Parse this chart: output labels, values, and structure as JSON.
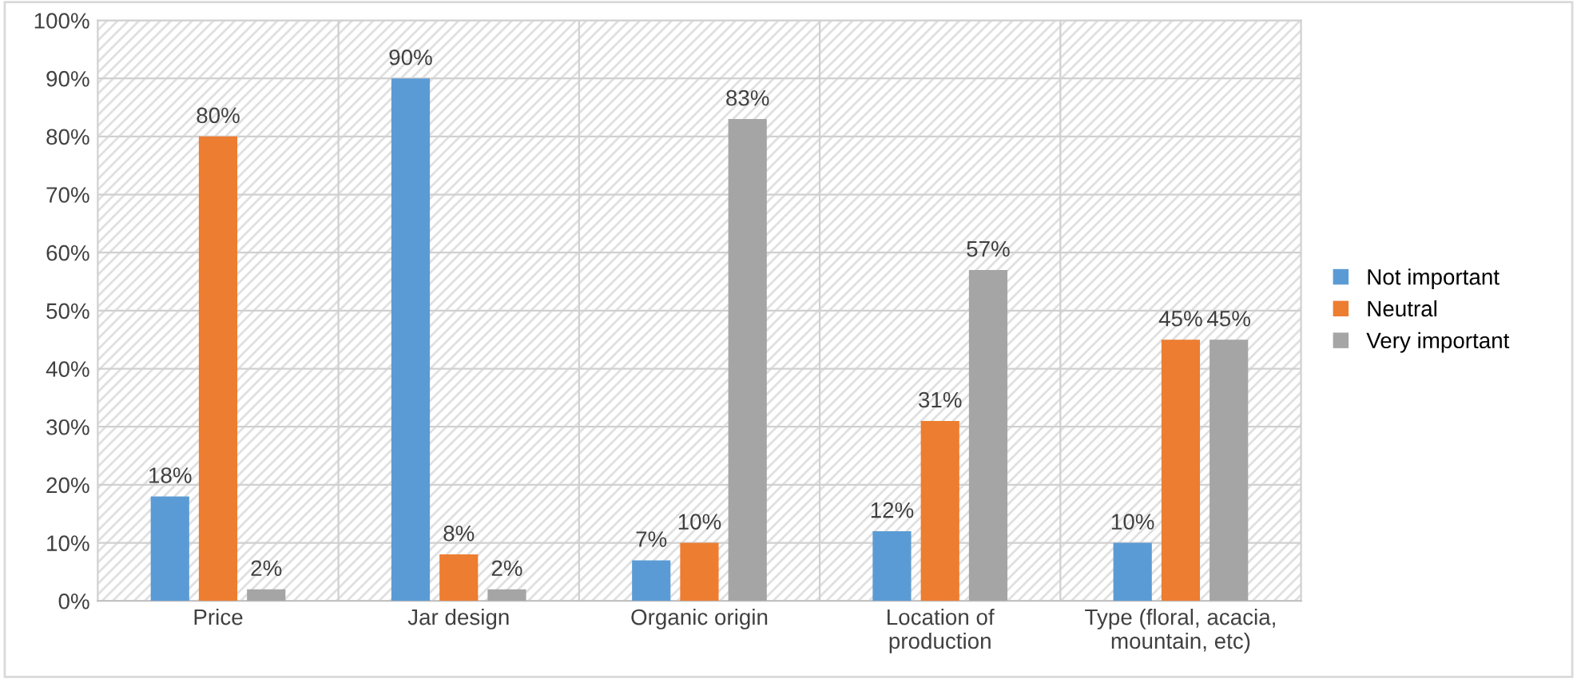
{
  "chart_data": {
    "type": "bar",
    "categories": [
      "Price",
      "Jar design",
      "Organic origin",
      "Location of production",
      "Type (floral, acacia, mountain, etc)"
    ],
    "series": [
      {
        "name": "Not important",
        "color": "#5b9bd5",
        "values": [
          18,
          90,
          7,
          12,
          10
        ],
        "value_labels": [
          "18%",
          "90%",
          "7%",
          "12%",
          "10%"
        ]
      },
      {
        "name": "Neutral",
        "color": "#ed7d31",
        "values": [
          80,
          8,
          10,
          31,
          45
        ],
        "value_labels": [
          "80%",
          "8%",
          "10%",
          "31%",
          "45%"
        ]
      },
      {
        "name": "Very important",
        "color": "#a5a5a5",
        "values": [
          2,
          2,
          83,
          57,
          45
        ],
        "value_labels": [
          "2%",
          "2%",
          "83%",
          "57%",
          "45%"
        ]
      }
    ],
    "ylim": [
      0,
      100
    ],
    "yticks": [
      {
        "value": 0,
        "label": "0%"
      },
      {
        "value": 10,
        "label": "10%"
      },
      {
        "value": 20,
        "label": "20%"
      },
      {
        "value": 30,
        "label": "30%"
      },
      {
        "value": 40,
        "label": "40%"
      },
      {
        "value": 50,
        "label": "50%"
      },
      {
        "value": 60,
        "label": "60%"
      },
      {
        "value": 70,
        "label": "70%"
      },
      {
        "value": 80,
        "label": "80%"
      },
      {
        "value": 90,
        "label": "90%"
      },
      {
        "value": 100,
        "label": "100%"
      }
    ],
    "grid": true,
    "legend": "right"
  }
}
